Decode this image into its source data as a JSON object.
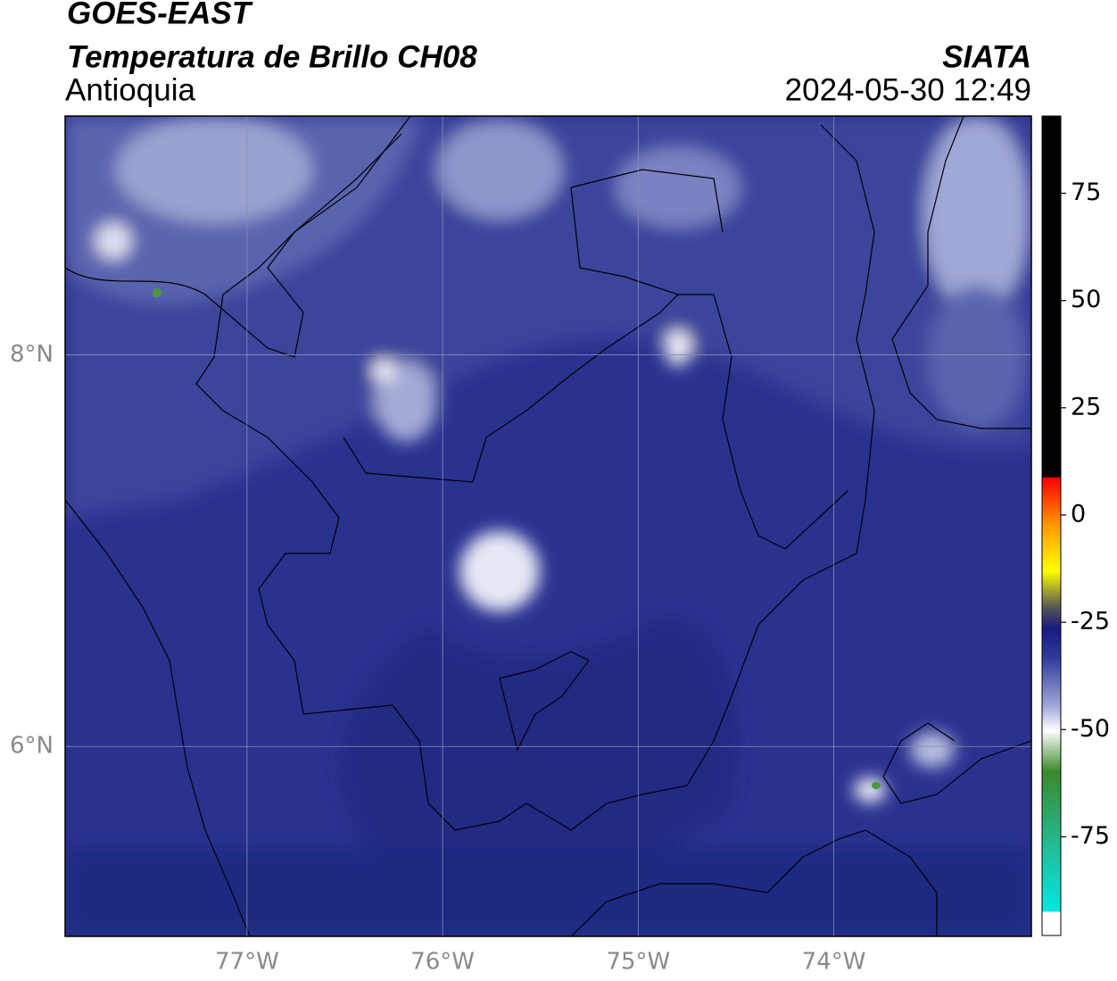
{
  "header": {
    "title": "GOES-EAST",
    "subtitle": "Temperatura de Brillo CH08",
    "region": "Antioquia",
    "source": "SIATA",
    "datetime": "2024-05-30 12:49"
  },
  "map": {
    "xlim": [
      -77.93,
      -72.99
    ],
    "ylim": [
      5.03,
      9.22
    ],
    "xticks": [
      {
        "value": -77,
        "label": "77°W"
      },
      {
        "value": -76,
        "label": "76°W"
      },
      {
        "value": -75,
        "label": "75°W"
      },
      {
        "value": -74,
        "label": "74°W"
      }
    ],
    "yticks": [
      {
        "value": 8,
        "label": "8°N"
      },
      {
        "value": 6,
        "label": "6°N"
      }
    ]
  },
  "colorbar": {
    "clim": [
      -98,
      93
    ],
    "ticks": [
      75,
      50,
      25,
      0,
      -25,
      -50,
      -75
    ]
  }
}
